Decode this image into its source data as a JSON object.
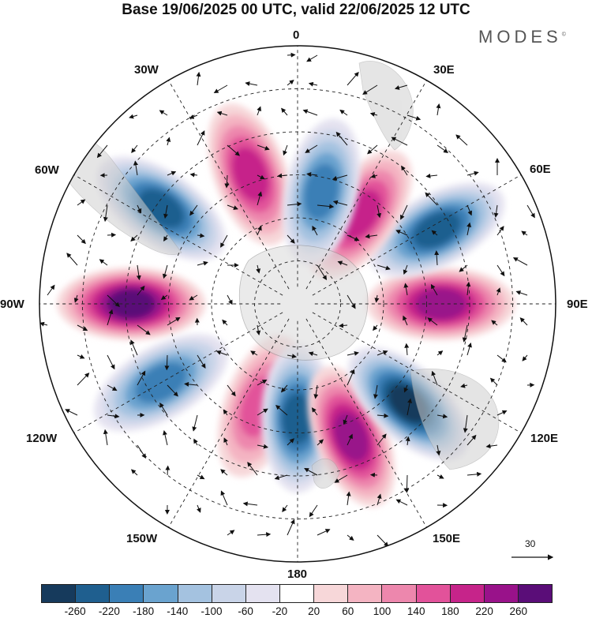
{
  "title": "Base 19/06/2025 00 UTC, valid 22/06/2025 12 UTC",
  "brand": "MODES",
  "brand_mark": "©",
  "longitude_labels": {
    "lon_0": "0",
    "lon_30e": "30E",
    "lon_60e": "60E",
    "lon_90e": "90E",
    "lon_120e": "120E",
    "lon_150e": "150E",
    "lon_180": "180",
    "lon_150w": "150W",
    "lon_120w": "120W",
    "lon_90w": "90W",
    "lon_60w": "60W",
    "lon_30w": "30W"
  },
  "reference_vector": {
    "value": "30",
    "icon": "arrow-right-icon"
  },
  "colorbar": {
    "colors": [
      "#163a5c",
      "#1f5f8f",
      "#3a7fb6",
      "#6aa3cf",
      "#a4c2e0",
      "#c9d4e8",
      "#e4e2f0",
      "#ffffff",
      "#f7d7d9",
      "#f4b4c2",
      "#ed87ad",
      "#e2529a",
      "#c6248a",
      "#99128a",
      "#5a0d78"
    ],
    "tick_labels": [
      "-260",
      "-220",
      "-180",
      "-140",
      "-100",
      "-60",
      "-20",
      "20",
      "60",
      "100",
      "140",
      "180",
      "220",
      "260"
    ]
  },
  "anomaly_centers": [
    {
      "sign": "positive",
      "lon": -20,
      "colat": 48,
      "magnitude": 160
    },
    {
      "sign": "negative",
      "lon": -55,
      "colat": 58,
      "magnitude": 200
    },
    {
      "sign": "positive",
      "lon": -90,
      "colat": 58,
      "magnitude": 220
    },
    {
      "sign": "negative",
      "lon": -120,
      "colat": 55,
      "magnitude": 160
    },
    {
      "sign": "positive",
      "lon": -160,
      "colat": 38,
      "magnitude": 120
    },
    {
      "sign": "negative",
      "lon": 180,
      "colat": 40,
      "magnitude": 200
    },
    {
      "sign": "positive",
      "lon": 158,
      "colat": 50,
      "magnitude": 180
    },
    {
      "sign": "negative",
      "lon": 132,
      "colat": 52,
      "magnitude": 240
    },
    {
      "sign": "positive",
      "lon": 90,
      "colat": 50,
      "magnitude": 200
    },
    {
      "sign": "negative",
      "lon": 62,
      "colat": 55,
      "magnitude": 200
    },
    {
      "sign": "positive",
      "lon": 35,
      "colat": 38,
      "magnitude": 160
    },
    {
      "sign": "negative",
      "lon": 12,
      "colat": 40,
      "magnitude": 140
    }
  ]
}
